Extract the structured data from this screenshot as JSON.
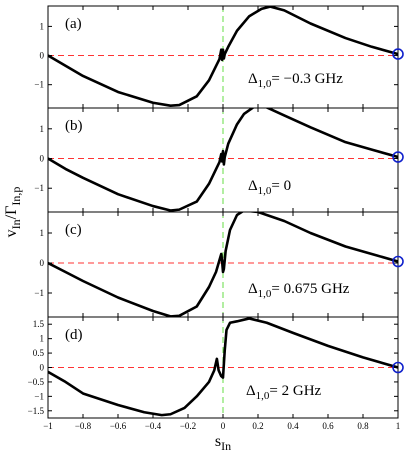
{
  "chart_data": {
    "type": "line",
    "xlabel": "s",
    "xlabel_sub": "In",
    "ylabel": "v",
    "ylabel_sub": "In",
    "ylabel_sep": "/Γ",
    "ylabel_sub2": "In,p",
    "xlim": [
      -1,
      1
    ],
    "x_ticks": [
      -1,
      -0.8,
      -0.6,
      -0.4,
      -0.2,
      0,
      0.2,
      0.4,
      0.6,
      0.8,
      1
    ],
    "colors": {
      "curve": "#000000",
      "zero_line": "#ff3333",
      "vertical_line": "#66dd44",
      "marker": "#1122cc"
    },
    "panels": [
      {
        "label": "(a)",
        "annotation": "Δ",
        "annotation_sub": "1,0",
        "annotation_rest": "= −0.3 GHz",
        "ylim": [
          -1.8,
          1.7
        ],
        "y_ticks": [
          -1,
          0,
          1
        ],
        "points": [
          [
            -1,
            0
          ],
          [
            -0.9,
            -0.35
          ],
          [
            -0.8,
            -0.7
          ],
          [
            -0.6,
            -1.25
          ],
          [
            -0.4,
            -1.62
          ],
          [
            -0.3,
            -1.72
          ],
          [
            -0.25,
            -1.7
          ],
          [
            -0.15,
            -1.4
          ],
          [
            -0.08,
            -0.85
          ],
          [
            -0.035,
            -0.3
          ],
          [
            -0.02,
            -0.12
          ],
          [
            -0.01,
            0.2
          ],
          [
            -0.005,
            -0.15
          ],
          [
            0,
            0.2
          ],
          [
            0.005,
            -0.1
          ],
          [
            0.01,
            0.05
          ],
          [
            0.03,
            0.3
          ],
          [
            0.08,
            0.85
          ],
          [
            0.15,
            1.35
          ],
          [
            0.22,
            1.6
          ],
          [
            0.27,
            1.68
          ],
          [
            0.35,
            1.55
          ],
          [
            0.5,
            1.1
          ],
          [
            0.7,
            0.6
          ],
          [
            0.85,
            0.3
          ],
          [
            1,
            0.05
          ]
        ],
        "marker": [
          1,
          0.05
        ]
      },
      {
        "label": "(b)",
        "annotation": "Δ",
        "annotation_sub": "1,0",
        "annotation_rest": "= 0",
        "ylim": [
          -1.8,
          1.7
        ],
        "y_ticks": [
          -1,
          0,
          1
        ],
        "points": [
          [
            -1,
            0
          ],
          [
            -0.9,
            -0.35
          ],
          [
            -0.8,
            -0.65
          ],
          [
            -0.6,
            -1.2
          ],
          [
            -0.4,
            -1.6
          ],
          [
            -0.3,
            -1.75
          ],
          [
            -0.25,
            -1.72
          ],
          [
            -0.15,
            -1.45
          ],
          [
            -0.08,
            -0.85
          ],
          [
            -0.035,
            -0.3
          ],
          [
            -0.02,
            -0.12
          ],
          [
            -0.01,
            0.15
          ],
          [
            -0.005,
            -0.1
          ],
          [
            0,
            0.25
          ],
          [
            0.005,
            -0.2
          ],
          [
            0.01,
            0.05
          ],
          [
            0.03,
            0.5
          ],
          [
            0.08,
            1.15
          ],
          [
            0.12,
            1.5
          ],
          [
            0.18,
            1.75
          ],
          [
            0.22,
            1.8
          ],
          [
            0.35,
            1.45
          ],
          [
            0.5,
            1.05
          ],
          [
            0.7,
            0.55
          ],
          [
            0.85,
            0.3
          ],
          [
            1,
            0.05
          ]
        ],
        "marker": [
          1,
          0.05
        ]
      },
      {
        "label": "(c)",
        "annotation": "Δ",
        "annotation_sub": "1,0",
        "annotation_rest": "= 0.675 GHz",
        "ylim": [
          -1.8,
          1.7
        ],
        "y_ticks": [
          -1,
          0,
          1
        ],
        "points": [
          [
            -1,
            0
          ],
          [
            -0.9,
            -0.3
          ],
          [
            -0.8,
            -0.6
          ],
          [
            -0.6,
            -1.15
          ],
          [
            -0.4,
            -1.6
          ],
          [
            -0.3,
            -1.78
          ],
          [
            -0.25,
            -1.76
          ],
          [
            -0.15,
            -1.45
          ],
          [
            -0.08,
            -0.8
          ],
          [
            -0.04,
            -0.3
          ],
          [
            -0.02,
            0.1
          ],
          [
            -0.01,
            0.3
          ],
          [
            -0.005,
            0.05
          ],
          [
            0,
            -0.3
          ],
          [
            0.005,
            -0.2
          ],
          [
            0.015,
            0.4
          ],
          [
            0.04,
            1.1
          ],
          [
            0.08,
            1.6
          ],
          [
            0.12,
            1.75
          ],
          [
            0.2,
            1.7
          ],
          [
            0.35,
            1.4
          ],
          [
            0.5,
            1
          ],
          [
            0.7,
            0.55
          ],
          [
            0.85,
            0.3
          ],
          [
            1,
            0.05
          ]
        ],
        "marker": [
          1,
          0.05
        ]
      },
      {
        "label": "(d)",
        "annotation": "Δ",
        "annotation_sub": "1,0",
        "annotation_rest": "= 2 GHz",
        "ylim": [
          -1.75,
          1.75
        ],
        "y_ticks": [
          -1.5,
          -1,
          -0.5,
          0,
          0.5,
          1,
          1.5
        ],
        "points": [
          [
            -1,
            -0.15
          ],
          [
            -0.9,
            -0.5
          ],
          [
            -0.8,
            -0.9
          ],
          [
            -0.6,
            -1.3
          ],
          [
            -0.45,
            -1.55
          ],
          [
            -0.35,
            -1.65
          ],
          [
            -0.3,
            -1.62
          ],
          [
            -0.22,
            -1.4
          ],
          [
            -0.15,
            -1
          ],
          [
            -0.08,
            -0.5
          ],
          [
            -0.05,
            -0.1
          ],
          [
            -0.035,
            0.3
          ],
          [
            -0.025,
            -0.1
          ],
          [
            -0.01,
            -0.3
          ],
          [
            0,
            -0.35
          ],
          [
            0.01,
            0.6
          ],
          [
            0.02,
            1.3
          ],
          [
            0.04,
            1.55
          ],
          [
            0.08,
            1.6
          ],
          [
            0.15,
            1.7
          ],
          [
            0.25,
            1.55
          ],
          [
            0.4,
            1.2
          ],
          [
            0.6,
            0.75
          ],
          [
            0.8,
            0.35
          ],
          [
            1,
            0
          ]
        ],
        "marker": [
          1,
          0
        ]
      }
    ]
  }
}
